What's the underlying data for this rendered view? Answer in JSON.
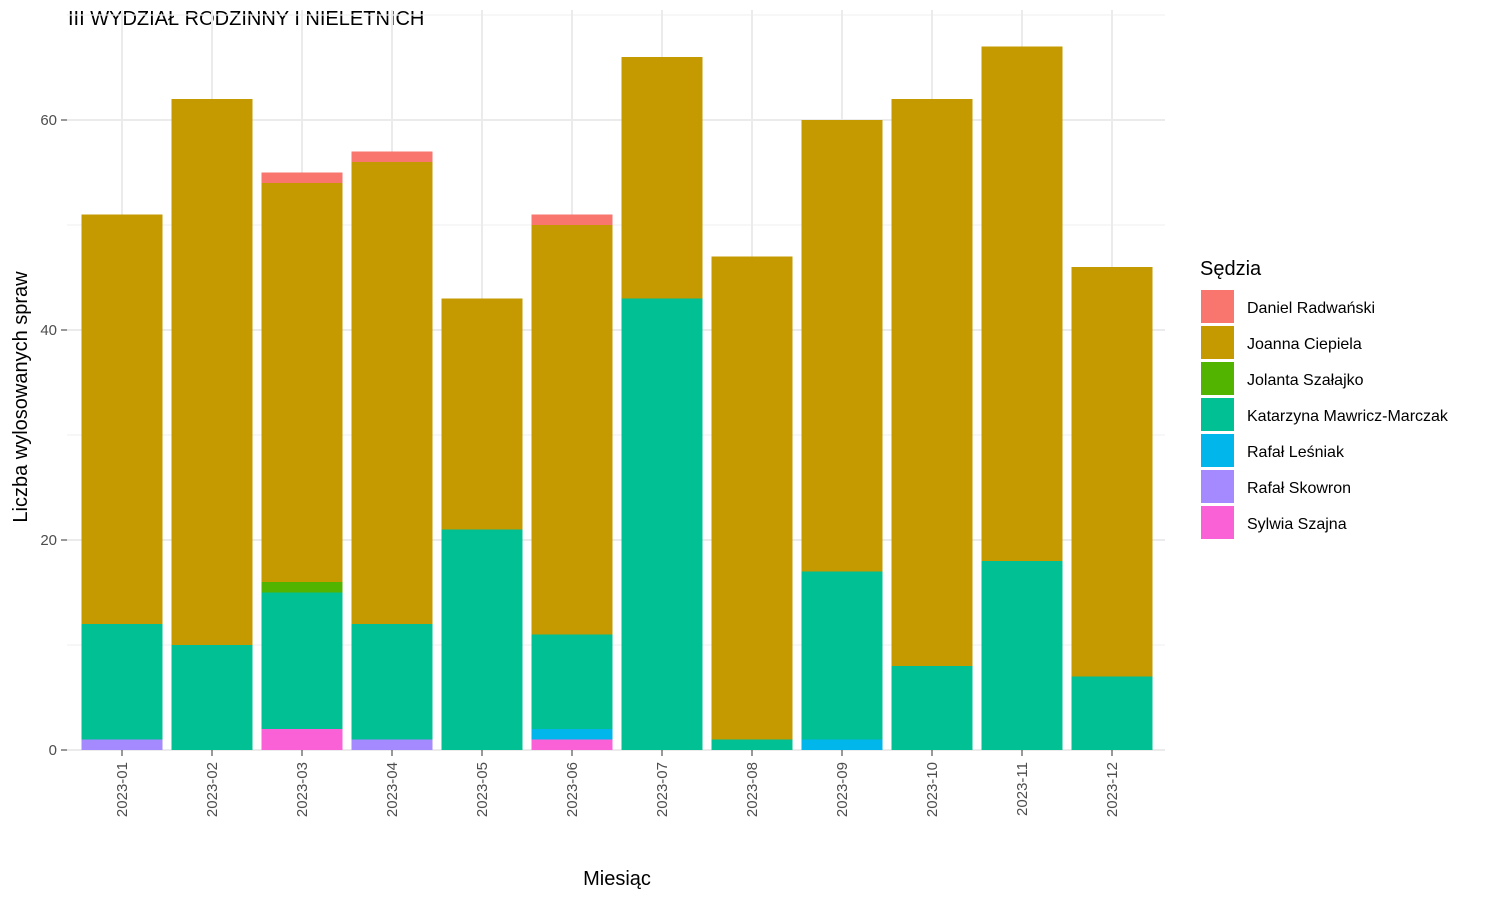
{
  "chart_data": {
    "type": "bar",
    "stacked": true,
    "title": "III WYDZIAŁ RODZINNY I NIELETNICH",
    "xlabel": "Miesiąc",
    "ylabel": "Liczba wylosowanych spraw",
    "ylim": [
      0,
      70
    ],
    "yticks": [
      0,
      20,
      40,
      60
    ],
    "grid": true,
    "legend": {
      "title": "Sędzia",
      "position": "right"
    },
    "categories": [
      "2023-01",
      "2023-02",
      "2023-03",
      "2023-04",
      "2023-05",
      "2023-06",
      "2023-07",
      "2023-08",
      "2023-09",
      "2023-10",
      "2023-11",
      "2023-12"
    ],
    "series": [
      {
        "name": "Daniel Radwański",
        "color": "#F8766D",
        "values": [
          0,
          0,
          1,
          1,
          0,
          1,
          0,
          0,
          0,
          0,
          0,
          0
        ]
      },
      {
        "name": "Joanna Ciepiela",
        "color": "#C49A00",
        "values": [
          39,
          52,
          38,
          44,
          22,
          39,
          23,
          46,
          43,
          54,
          49,
          39
        ]
      },
      {
        "name": "Jolanta Szałajko",
        "color": "#53B400",
        "values": [
          0,
          0,
          1,
          0,
          0,
          0,
          0,
          0,
          0,
          0,
          0,
          0
        ]
      },
      {
        "name": "Katarzyna Mawricz-Marczak",
        "color": "#00C094",
        "values": [
          11,
          10,
          13,
          11,
          21,
          9,
          43,
          1,
          16,
          8,
          18,
          7
        ]
      },
      {
        "name": "Rafał Leśniak",
        "color": "#00B6EB",
        "values": [
          0,
          0,
          0,
          0,
          0,
          1,
          0,
          0,
          1,
          0,
          0,
          0
        ]
      },
      {
        "name": "Rafał Skowron",
        "color": "#A58AFF",
        "values": [
          1,
          0,
          0,
          1,
          0,
          0,
          0,
          0,
          0,
          0,
          0,
          0
        ]
      },
      {
        "name": "Sylwia Szajna",
        "color": "#FB61D7",
        "values": [
          0,
          0,
          2,
          0,
          0,
          1,
          0,
          0,
          0,
          0,
          0,
          0
        ]
      }
    ]
  }
}
